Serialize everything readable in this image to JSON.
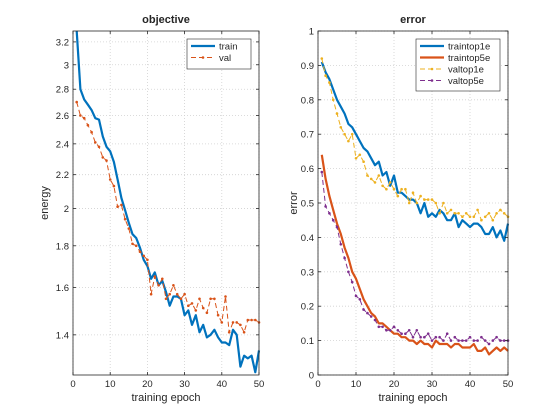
{
  "chart_data": [
    {
      "type": "line",
      "title": "objective",
      "xlabel": "training epoch",
      "ylabel": "energy",
      "xlim": [
        0,
        50
      ],
      "ylim": [
        1.25,
        3.3
      ],
      "yscale": "log",
      "grid": true,
      "legend_position": "top-right",
      "xticks": [
        0,
        10,
        20,
        30,
        40,
        50
      ],
      "yticks": [
        1.4,
        1.6,
        1.8,
        2,
        2.2,
        2.4,
        2.6,
        2.8,
        3,
        3.2
      ],
      "series": [
        {
          "name": "train",
          "color": "#0072bd",
          "style": "solid",
          "x": [
            1,
            2,
            3,
            4,
            5,
            6,
            7,
            8,
            9,
            10,
            11,
            12,
            13,
            14,
            15,
            16,
            17,
            18,
            19,
            20,
            21,
            22,
            23,
            24,
            25,
            26,
            27,
            28,
            29,
            30,
            31,
            32,
            33,
            34,
            35,
            36,
            37,
            38,
            39,
            40,
            41,
            42,
            43,
            44,
            45,
            46,
            47,
            48,
            49,
            50
          ],
          "values": [
            3.3,
            2.8,
            2.72,
            2.68,
            2.64,
            2.58,
            2.57,
            2.45,
            2.38,
            2.35,
            2.28,
            2.17,
            2.06,
            1.99,
            1.92,
            1.86,
            1.84,
            1.79,
            1.73,
            1.7,
            1.64,
            1.67,
            1.61,
            1.63,
            1.58,
            1.52,
            1.56,
            1.56,
            1.55,
            1.48,
            1.5,
            1.44,
            1.48,
            1.41,
            1.44,
            1.39,
            1.4,
            1.42,
            1.39,
            1.37,
            1.37,
            1.36,
            1.42,
            1.4,
            1.28,
            1.32,
            1.31,
            1.32,
            1.26,
            1.34
          ]
        },
        {
          "name": "val",
          "color": "#d95319",
          "style": "dashed",
          "x": [
            1,
            2,
            3,
            4,
            5,
            6,
            7,
            8,
            9,
            10,
            11,
            12,
            13,
            14,
            15,
            16,
            17,
            18,
            19,
            20,
            21,
            22,
            23,
            24,
            25,
            26,
            27,
            28,
            29,
            30,
            31,
            32,
            33,
            34,
            35,
            36,
            37,
            38,
            39,
            40,
            41,
            42,
            43,
            44,
            45,
            46,
            47,
            48,
            49,
            50
          ],
          "values": [
            2.7,
            2.6,
            2.58,
            2.53,
            2.48,
            2.41,
            2.38,
            2.31,
            2.29,
            2.17,
            2.13,
            2.01,
            2.02,
            1.94,
            1.89,
            1.81,
            1.8,
            1.77,
            1.75,
            1.73,
            1.57,
            1.65,
            1.61,
            1.64,
            1.55,
            1.57,
            1.61,
            1.57,
            1.55,
            1.57,
            1.52,
            1.53,
            1.5,
            1.55,
            1.51,
            1.49,
            1.55,
            1.55,
            1.48,
            1.45,
            1.56,
            1.41,
            1.45,
            1.45,
            1.44,
            1.41,
            1.46,
            1.46,
            1.46,
            1.45
          ]
        }
      ]
    },
    {
      "type": "line",
      "title": "error",
      "xlabel": "training epoch",
      "ylabel": "error",
      "xlim": [
        0,
        50
      ],
      "ylim": [
        0,
        1
      ],
      "grid": true,
      "legend_position": "top-right",
      "xticks": [
        0,
        10,
        20,
        30,
        40,
        50
      ],
      "yticks": [
        0,
        0.1,
        0.2,
        0.3,
        0.4,
        0.5,
        0.6,
        0.7,
        0.8,
        0.9,
        1
      ],
      "series": [
        {
          "name": "traintop1e",
          "color": "#0072bd",
          "style": "solid",
          "x": [
            1,
            2,
            3,
            4,
            5,
            6,
            7,
            8,
            9,
            10,
            11,
            12,
            13,
            14,
            15,
            16,
            17,
            18,
            19,
            20,
            21,
            22,
            23,
            24,
            25,
            26,
            27,
            28,
            29,
            30,
            31,
            32,
            33,
            34,
            35,
            36,
            37,
            38,
            39,
            40,
            41,
            42,
            43,
            44,
            45,
            46,
            47,
            48,
            49,
            50
          ],
          "values": [
            0.91,
            0.88,
            0.86,
            0.83,
            0.8,
            0.78,
            0.76,
            0.73,
            0.72,
            0.7,
            0.68,
            0.66,
            0.65,
            0.63,
            0.61,
            0.62,
            0.58,
            0.59,
            0.55,
            0.58,
            0.53,
            0.53,
            0.52,
            0.51,
            0.51,
            0.5,
            0.47,
            0.5,
            0.46,
            0.47,
            0.46,
            0.48,
            0.47,
            0.45,
            0.45,
            0.47,
            0.43,
            0.45,
            0.44,
            0.43,
            0.44,
            0.44,
            0.43,
            0.41,
            0.41,
            0.43,
            0.4,
            0.42,
            0.39,
            0.44
          ]
        },
        {
          "name": "traintop5e",
          "color": "#d95319",
          "style": "solid",
          "x": [
            1,
            2,
            3,
            4,
            5,
            6,
            7,
            8,
            9,
            10,
            11,
            12,
            13,
            14,
            15,
            16,
            17,
            18,
            19,
            20,
            21,
            22,
            23,
            24,
            25,
            26,
            27,
            28,
            29,
            30,
            31,
            32,
            33,
            34,
            35,
            36,
            37,
            38,
            39,
            40,
            41,
            42,
            43,
            44,
            45,
            46,
            47,
            48,
            49,
            50
          ],
          "values": [
            0.64,
            0.57,
            0.52,
            0.48,
            0.44,
            0.41,
            0.37,
            0.34,
            0.3,
            0.28,
            0.25,
            0.22,
            0.2,
            0.18,
            0.17,
            0.15,
            0.15,
            0.14,
            0.13,
            0.12,
            0.12,
            0.11,
            0.11,
            0.1,
            0.1,
            0.09,
            0.1,
            0.09,
            0.09,
            0.08,
            0.1,
            0.09,
            0.09,
            0.09,
            0.08,
            0.09,
            0.09,
            0.08,
            0.08,
            0.08,
            0.09,
            0.07,
            0.07,
            0.08,
            0.06,
            0.07,
            0.08,
            0.07,
            0.08,
            0.07
          ]
        },
        {
          "name": "valtop1e",
          "color": "#edb120",
          "style": "dashed",
          "x": [
            1,
            2,
            3,
            4,
            5,
            6,
            7,
            8,
            9,
            10,
            11,
            12,
            13,
            14,
            15,
            16,
            17,
            18,
            19,
            20,
            21,
            22,
            23,
            24,
            25,
            26,
            27,
            28,
            29,
            30,
            31,
            32,
            33,
            34,
            35,
            36,
            37,
            38,
            39,
            40,
            41,
            42,
            43,
            44,
            45,
            46,
            47,
            48,
            49,
            50
          ],
          "values": [
            0.92,
            0.87,
            0.85,
            0.8,
            0.76,
            0.72,
            0.7,
            0.68,
            0.7,
            0.63,
            0.64,
            0.62,
            0.58,
            0.57,
            0.56,
            0.58,
            0.55,
            0.54,
            0.56,
            0.54,
            0.52,
            0.54,
            0.54,
            0.5,
            0.53,
            0.5,
            0.52,
            0.51,
            0.51,
            0.51,
            0.5,
            0.47,
            0.5,
            0.47,
            0.48,
            0.47,
            0.47,
            0.46,
            0.47,
            0.46,
            0.46,
            0.48,
            0.45,
            0.46,
            0.47,
            0.45,
            0.47,
            0.48,
            0.47,
            0.46
          ]
        },
        {
          "name": "valtop5e",
          "color": "#7e2f8e",
          "style": "dashed",
          "x": [
            1,
            2,
            3,
            4,
            5,
            6,
            7,
            8,
            9,
            10,
            11,
            12,
            13,
            14,
            15,
            16,
            17,
            18,
            19,
            20,
            21,
            22,
            23,
            24,
            25,
            26,
            27,
            28,
            29,
            30,
            31,
            32,
            33,
            34,
            35,
            36,
            37,
            38,
            39,
            40,
            41,
            42,
            43,
            44,
            45,
            46,
            47,
            48,
            49,
            50
          ],
          "values": [
            0.59,
            0.49,
            0.47,
            0.45,
            0.43,
            0.38,
            0.34,
            0.3,
            0.27,
            0.23,
            0.22,
            0.19,
            0.18,
            0.17,
            0.16,
            0.14,
            0.14,
            0.13,
            0.13,
            0.14,
            0.13,
            0.12,
            0.12,
            0.13,
            0.11,
            0.13,
            0.11,
            0.11,
            0.12,
            0.1,
            0.11,
            0.11,
            0.1,
            0.12,
            0.1,
            0.11,
            0.1,
            0.1,
            0.1,
            0.11,
            0.1,
            0.1,
            0.11,
            0.1,
            0.09,
            0.1,
            0.11,
            0.1,
            0.1,
            0.1
          ]
        }
      ]
    }
  ]
}
